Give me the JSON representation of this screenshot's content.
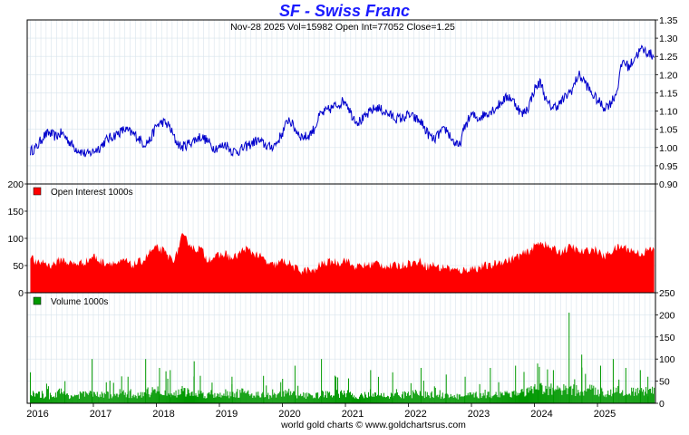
{
  "header": {
    "title": "SF  -  Swiss Franc",
    "stats": "Nov-28  2025   Vol=15982   Open Int=77052   Close=1.25"
  },
  "footer": {
    "credit": "world gold charts © www.goldchartsrus.com"
  },
  "colors": {
    "price_line": "#0000cc",
    "open_interest_fill": "#ff0000",
    "volume_fill": "#009900",
    "grid": "#d8e4ec",
    "frame": "#000000"
  },
  "chart_data": [
    {
      "type": "line",
      "name": "price",
      "x_range": [
        2015.95,
        2025.92
      ],
      "ylim": [
        0.9,
        1.35
      ],
      "yticks": [
        0.9,
        0.95,
        1.0,
        1.05,
        1.1,
        1.15,
        1.2,
        1.25,
        1.3,
        1.35
      ],
      "ytick_labels": [
        "0.90",
        "0.95",
        "1.00",
        "1.05",
        "1.10",
        "1.15",
        "1.20",
        "1.25",
        "1.30",
        "1.35"
      ],
      "axis_side": "right",
      "grid": true,
      "x": [
        2016.0,
        2016.1,
        2016.2,
        2016.3,
        2016.4,
        2016.5,
        2016.6,
        2016.7,
        2016.8,
        2016.9,
        2017.0,
        2017.1,
        2017.2,
        2017.3,
        2017.4,
        2017.5,
        2017.6,
        2017.7,
        2017.8,
        2017.9,
        2018.0,
        2018.1,
        2018.2,
        2018.3,
        2018.4,
        2018.5,
        2018.6,
        2018.7,
        2018.8,
        2018.9,
        2019.0,
        2019.1,
        2019.2,
        2019.3,
        2019.4,
        2019.5,
        2019.6,
        2019.7,
        2019.8,
        2019.9,
        2020.0,
        2020.1,
        2020.2,
        2020.3,
        2020.4,
        2020.5,
        2020.6,
        2020.7,
        2020.8,
        2020.9,
        2021.0,
        2021.1,
        2021.2,
        2021.3,
        2021.4,
        2021.5,
        2021.6,
        2021.7,
        2021.8,
        2021.9,
        2022.0,
        2022.1,
        2022.2,
        2022.3,
        2022.4,
        2022.5,
        2022.6,
        2022.7,
        2022.8,
        2022.9,
        2023.0,
        2023.1,
        2023.2,
        2023.3,
        2023.4,
        2023.5,
        2023.6,
        2023.7,
        2023.8,
        2023.9,
        2024.0,
        2024.1,
        2024.2,
        2024.3,
        2024.4,
        2024.5,
        2024.6,
        2024.7,
        2024.8,
        2024.9,
        2025.0,
        2025.1,
        2025.2,
        2025.3,
        2025.4,
        2025.5,
        2025.6,
        2025.7,
        2025.8,
        2025.9
      ],
      "y": [
        0.99,
        1.0,
        1.03,
        1.04,
        1.03,
        1.04,
        1.02,
        1.0,
        0.99,
        0.98,
        0.99,
        1.0,
        1.02,
        1.03,
        1.04,
        1.05,
        1.04,
        1.03,
        1.01,
        1.02,
        1.06,
        1.07,
        1.06,
        1.02,
        1.0,
        1.01,
        1.02,
        1.03,
        1.02,
        1.0,
        1.0,
        1.01,
        0.99,
        0.99,
        1.0,
        1.01,
        1.02,
        1.01,
        1.0,
        1.01,
        1.04,
        1.08,
        1.05,
        1.03,
        1.03,
        1.05,
        1.09,
        1.1,
        1.11,
        1.12,
        1.13,
        1.09,
        1.07,
        1.08,
        1.1,
        1.11,
        1.1,
        1.09,
        1.08,
        1.08,
        1.09,
        1.08,
        1.07,
        1.04,
        1.02,
        1.04,
        1.05,
        1.02,
        1.0,
        1.06,
        1.09,
        1.08,
        1.09,
        1.1,
        1.11,
        1.13,
        1.14,
        1.12,
        1.09,
        1.11,
        1.16,
        1.18,
        1.12,
        1.11,
        1.12,
        1.14,
        1.16,
        1.2,
        1.18,
        1.15,
        1.13,
        1.11,
        1.12,
        1.15,
        1.24,
        1.22,
        1.25,
        1.27,
        1.26,
        1.25
      ]
    },
    {
      "type": "area",
      "name": "open_interest",
      "legend": "Open Interest  1000s",
      "x_range": [
        2015.95,
        2025.92
      ],
      "ylim": [
        0,
        200
      ],
      "yticks": [
        0,
        50,
        100,
        150,
        200
      ],
      "ytick_labels": [
        "0",
        "50",
        "100",
        "150",
        "200"
      ],
      "axis_side": "left",
      "grid": true,
      "x": [
        2016.0,
        2016.1,
        2016.2,
        2016.3,
        2016.4,
        2016.5,
        2016.6,
        2016.7,
        2016.8,
        2016.9,
        2017.0,
        2017.1,
        2017.2,
        2017.3,
        2017.4,
        2017.5,
        2017.6,
        2017.7,
        2017.8,
        2017.9,
        2018.0,
        2018.1,
        2018.2,
        2018.3,
        2018.4,
        2018.5,
        2018.6,
        2018.7,
        2018.8,
        2018.9,
        2019.0,
        2019.1,
        2019.2,
        2019.3,
        2019.4,
        2019.5,
        2019.6,
        2019.7,
        2019.8,
        2019.9,
        2020.0,
        2020.1,
        2020.2,
        2020.3,
        2020.4,
        2020.5,
        2020.6,
        2020.7,
        2020.8,
        2020.9,
        2021.0,
        2021.1,
        2021.2,
        2021.3,
        2021.4,
        2021.5,
        2021.6,
        2021.7,
        2021.8,
        2021.9,
        2022.0,
        2022.1,
        2022.2,
        2022.3,
        2022.4,
        2022.5,
        2022.6,
        2022.7,
        2022.8,
        2022.9,
        2023.0,
        2023.1,
        2023.2,
        2023.3,
        2023.4,
        2023.5,
        2023.6,
        2023.7,
        2023.8,
        2023.9,
        2024.0,
        2024.1,
        2024.2,
        2024.3,
        2024.4,
        2024.5,
        2024.6,
        2024.7,
        2024.8,
        2024.9,
        2025.0,
        2025.1,
        2025.2,
        2025.3,
        2025.4,
        2025.5,
        2025.6,
        2025.7,
        2025.8,
        2025.9
      ],
      "values": [
        70,
        52,
        58,
        50,
        55,
        62,
        55,
        53,
        55,
        58,
        68,
        58,
        55,
        56,
        52,
        60,
        50,
        55,
        60,
        75,
        82,
        78,
        65,
        62,
        103,
        95,
        80,
        82,
        62,
        65,
        68,
        72,
        62,
        70,
        82,
        75,
        70,
        62,
        50,
        52,
        58,
        55,
        45,
        40,
        42,
        38,
        52,
        55,
        58,
        55,
        62,
        50,
        48,
        50,
        52,
        55,
        50,
        48,
        50,
        50,
        55,
        55,
        58,
        48,
        52,
        45,
        48,
        42,
        40,
        42,
        45,
        45,
        50,
        48,
        55,
        58,
        60,
        65,
        70,
        75,
        85,
        95,
        85,
        80,
        75,
        80,
        85,
        75,
        75,
        80,
        78,
        65,
        75,
        82,
        85,
        80,
        75,
        72,
        78,
        80
      ]
    },
    {
      "type": "bar",
      "name": "volume",
      "legend": "Volume  1000s",
      "x_range": [
        2015.95,
        2025.92
      ],
      "ylim": [
        0,
        250
      ],
      "yticks": [
        0,
        50,
        100,
        150,
        200,
        250
      ],
      "ytick_labels": [
        "0",
        "50",
        "100",
        "150",
        "200",
        "250"
      ],
      "axis_side": "right",
      "grid": true,
      "x": [
        2016.0,
        2016.1,
        2016.2,
        2016.3,
        2016.4,
        2016.5,
        2016.6,
        2016.7,
        2016.8,
        2016.9,
        2017.0,
        2017.1,
        2017.2,
        2017.3,
        2017.4,
        2017.5,
        2017.6,
        2017.7,
        2017.8,
        2017.9,
        2018.0,
        2018.1,
        2018.2,
        2018.3,
        2018.4,
        2018.5,
        2018.6,
        2018.7,
        2018.8,
        2018.9,
        2019.0,
        2019.1,
        2019.2,
        2019.3,
        2019.4,
        2019.5,
        2019.6,
        2019.7,
        2019.8,
        2019.9,
        2020.0,
        2020.1,
        2020.2,
        2020.3,
        2020.4,
        2020.5,
        2020.6,
        2020.7,
        2020.8,
        2020.9,
        2021.0,
        2021.1,
        2021.2,
        2021.3,
        2021.4,
        2021.5,
        2021.6,
        2021.7,
        2021.8,
        2021.9,
        2022.0,
        2022.1,
        2022.2,
        2022.3,
        2022.4,
        2022.5,
        2022.6,
        2022.7,
        2022.8,
        2022.9,
        2023.0,
        2023.1,
        2023.2,
        2023.3,
        2023.4,
        2023.5,
        2023.6,
        2023.7,
        2023.8,
        2023.9,
        2024.0,
        2024.1,
        2024.2,
        2024.3,
        2024.4,
        2024.5,
        2024.6,
        2024.7,
        2024.8,
        2024.9,
        2025.0,
        2025.1,
        2025.2,
        2025.3,
        2025.4,
        2025.5,
        2025.6,
        2025.7,
        2025.8,
        2025.9
      ],
      "values": [
        22,
        18,
        20,
        16,
        22,
        25,
        18,
        17,
        19,
        21,
        20,
        17,
        21,
        18,
        17,
        22,
        19,
        18,
        22,
        25,
        28,
        24,
        22,
        20,
        30,
        24,
        22,
        23,
        18,
        20,
        20,
        24,
        18,
        22,
        26,
        22,
        20,
        18,
        16,
        17,
        22,
        24,
        20,
        18,
        17,
        16,
        20,
        20,
        22,
        21,
        22,
        18,
        17,
        18,
        19,
        20,
        18,
        17,
        18,
        18,
        20,
        22,
        20,
        20,
        19,
        17,
        18,
        16,
        15,
        16,
        18,
        18,
        20,
        19,
        20,
        22,
        24,
        22,
        24,
        26,
        30,
        32,
        28,
        28,
        30,
        28,
        30,
        28,
        27,
        30,
        28,
        24,
        26,
        30,
        28,
        26,
        25,
        24,
        26,
        25
      ],
      "spikes": [
        {
          "x": 2016.0,
          "v": 70
        },
        {
          "x": 2016.55,
          "v": 50
        },
        {
          "x": 2016.98,
          "v": 100
        },
        {
          "x": 2017.55,
          "v": 60
        },
        {
          "x": 2017.83,
          "v": 100
        },
        {
          "x": 2018.05,
          "v": 80
        },
        {
          "x": 2018.22,
          "v": 75
        },
        {
          "x": 2018.6,
          "v": 95
        },
        {
          "x": 2019.2,
          "v": 60
        },
        {
          "x": 2019.7,
          "v": 62
        },
        {
          "x": 2020.2,
          "v": 85
        },
        {
          "x": 2020.62,
          "v": 100
        },
        {
          "x": 2020.85,
          "v": 60
        },
        {
          "x": 2021.4,
          "v": 75
        },
        {
          "x": 2021.75,
          "v": 70
        },
        {
          "x": 2022.2,
          "v": 80
        },
        {
          "x": 2022.6,
          "v": 65
        },
        {
          "x": 2022.9,
          "v": 60
        },
        {
          "x": 2023.3,
          "v": 80
        },
        {
          "x": 2023.7,
          "v": 85
        },
        {
          "x": 2024.05,
          "v": 90
        },
        {
          "x": 2024.3,
          "v": 75
        },
        {
          "x": 2024.55,
          "v": 205
        },
        {
          "x": 2024.75,
          "v": 110
        },
        {
          "x": 2025.05,
          "v": 85
        },
        {
          "x": 2025.25,
          "v": 100
        },
        {
          "x": 2025.45,
          "v": 80
        },
        {
          "x": 2025.68,
          "v": 75
        },
        {
          "x": 2025.8,
          "v": 60
        }
      ]
    }
  ],
  "x_axis": {
    "ticks": [
      2016,
      2017,
      2018,
      2019,
      2020,
      2021,
      2022,
      2023,
      2024,
      2025
    ],
    "labels": [
      "2016",
      "2017",
      "2018",
      "2019",
      "2020",
      "2021",
      "2022",
      "2023",
      "2024",
      "2025"
    ]
  }
}
